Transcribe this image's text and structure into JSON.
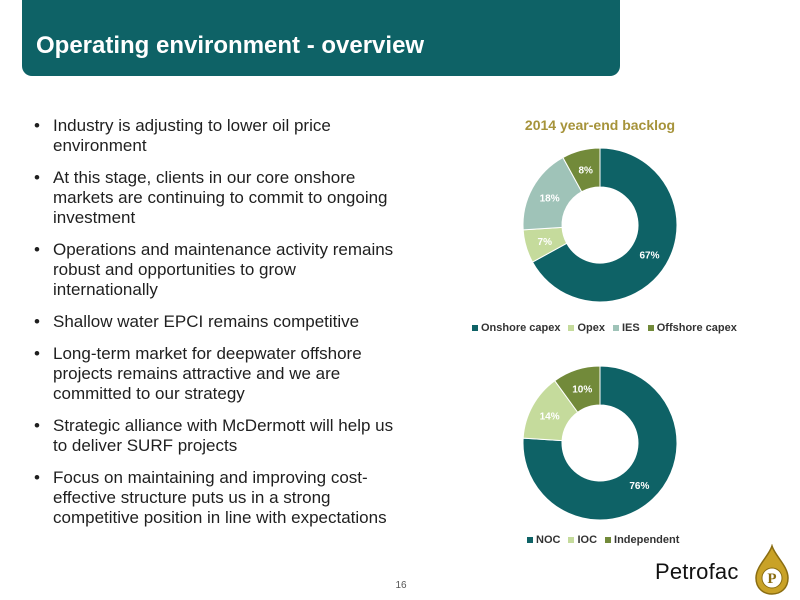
{
  "header": {
    "title": "Operating environment - overview"
  },
  "bullets": [
    "Industry is adjusting to lower oil price environment",
    "At this stage, clients in our core onshore markets are continuing to commit to ongoing investment",
    "Operations and maintenance activity remains robust and opportunities to grow internationally",
    "Shallow water EPCI remains competitive",
    "Long-term market for deepwater offshore projects remains attractive and we are committed to our strategy",
    "Strategic alliance with McDermott will help us to deliver SURF projects",
    "Focus on maintaining and improving cost-effective structure puts us in a strong competitive position in line with expectations"
  ],
  "bullet_glyph": "•",
  "chart_data": [
    {
      "type": "pie",
      "donut": true,
      "title": "2014 year-end backlog",
      "categories": [
        "Onshore capex",
        "Opex",
        "IES",
        "Offshore capex"
      ],
      "values": [
        67,
        7,
        18,
        8
      ],
      "value_labels": [
        "67%",
        "7%",
        "18%",
        "8%"
      ],
      "colors": [
        "#0e6266",
        "#c5db9c",
        "#9fc3b8",
        "#728a3a"
      ],
      "legend": "bottom"
    },
    {
      "type": "pie",
      "donut": true,
      "title": "",
      "categories": [
        "NOC",
        "IOC",
        "Independent"
      ],
      "values": [
        76,
        14,
        10
      ],
      "value_labels": [
        "76%",
        "14%",
        "10%"
      ],
      "colors": [
        "#0e6266",
        "#c5db9c",
        "#728a3a"
      ],
      "legend": "bottom"
    }
  ],
  "footer": {
    "page_number": "16",
    "brand": "Petrofac"
  },
  "colors": {
    "primary": "#0e6266",
    "title_accent": "#a6933a",
    "logo_gold": "#c9a227"
  }
}
